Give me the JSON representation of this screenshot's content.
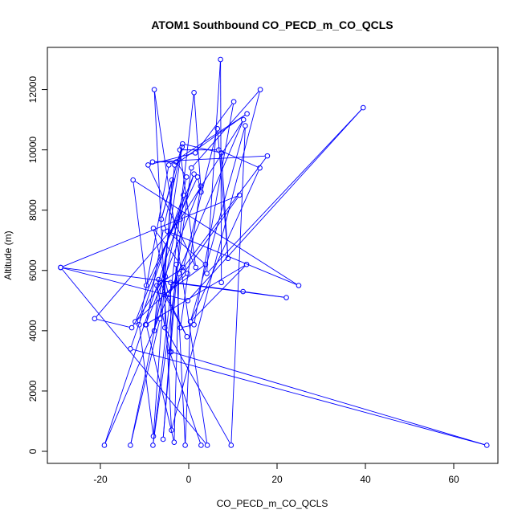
{
  "chart_data": {
    "type": "line",
    "title": "ATOM1 Southbound CO_PECD_m_CO_QCLS",
    "xlabel": "CO_PECD_m_CO_QCLS",
    "ylabel": "Altitude (m)",
    "xlim": [
      -32,
      70
    ],
    "ylim": [
      -400,
      13400
    ],
    "x_ticks": [
      -20,
      0,
      20,
      40,
      60
    ],
    "y_ticks": [
      0,
      2000,
      4000,
      6000,
      8000,
      10000,
      12000
    ],
    "x_tick_labels": [
      "-20",
      "0",
      "20",
      "40",
      "60"
    ],
    "y_tick_labels": [
      "0",
      "2000",
      "4000",
      "6000",
      "8000",
      "10000",
      "12000"
    ],
    "grid": false,
    "series_color": "#0000ff",
    "series": [
      {
        "points": [
          [
            2.8,
            200
          ],
          [
            -4.3,
            3300
          ],
          [
            -7.2,
            5500
          ],
          [
            -1.2,
            6100
          ],
          [
            6.5,
            10700
          ],
          [
            8.9,
            6400
          ],
          [
            7.4,
            9900
          ],
          [
            -1.4,
            10200
          ],
          [
            -6.2,
            7700
          ],
          [
            -3.8,
            9000
          ],
          [
            -8.0,
            500
          ],
          [
            -11.2,
            4200
          ],
          [
            -4.5,
            9500
          ],
          [
            13.2,
            11200
          ],
          [
            -3.2,
            9500
          ],
          [
            -6.5,
            4400
          ],
          [
            -13.2,
            200
          ],
          [
            -0.5,
            9100
          ],
          [
            -2.8,
            9600
          ],
          [
            -8.2,
            9600
          ],
          [
            17.8,
            9800
          ],
          [
            -2.2,
            5900
          ],
          [
            -3.3,
            300
          ],
          [
            -9.6,
            4200
          ],
          [
            -5.7,
            7400
          ],
          [
            -1.5,
            10100
          ],
          [
            -7.8,
            4000
          ],
          [
            -6.8,
            5700
          ],
          [
            -0.4,
            3800
          ],
          [
            -5.5,
            5200
          ],
          [
            3.8,
            6200
          ],
          [
            -4.8,
            7300
          ],
          [
            24.9,
            5500
          ],
          [
            -12.6,
            9000
          ],
          [
            -9.6,
            5500
          ],
          [
            2.0,
            9100
          ],
          [
            2.8,
            8600
          ],
          [
            1.2,
            11900
          ],
          [
            -8.1,
            200
          ],
          [
            0.6,
            9400
          ],
          [
            16.2,
            12000
          ],
          [
            -3.9,
            700
          ],
          [
            -7.8,
            12000
          ],
          [
            4.2,
            200
          ],
          [
            -29.0,
            6100
          ],
          [
            11.5,
            8500
          ],
          [
            -4.6,
            5200
          ],
          [
            -8.0,
            7400
          ],
          [
            -0.3,
            5900
          ],
          [
            -12.1,
            4300
          ],
          [
            1.2,
            9200
          ],
          [
            -19.1,
            200
          ],
          [
            12.4,
            11000
          ],
          [
            -1.9,
            7700
          ],
          [
            -21.3,
            4400
          ],
          [
            -12.9,
            4100
          ],
          [
            -5.3,
            5800
          ],
          [
            -5.4,
            4100
          ],
          [
            9.6,
            200
          ],
          [
            12.8,
            10800
          ],
          [
            0.4,
            4300
          ],
          [
            13.1,
            6200
          ],
          [
            -9.8,
            4200
          ],
          [
            2.7,
            8800
          ],
          [
            -1.9,
            4100
          ],
          [
            1.2,
            4200
          ],
          [
            10.2,
            11600
          ],
          [
            1.5,
            9900
          ],
          [
            -9.2,
            9500
          ],
          [
            1.6,
            6100
          ],
          [
            -2.0,
            10000
          ],
          [
            6.8,
            10000
          ],
          [
            16.1,
            9400
          ],
          [
            0.4,
            4300
          ],
          [
            -0.8,
            200
          ],
          [
            -2.8,
            6200
          ],
          [
            -5.8,
            400
          ],
          [
            -1.2,
            8500
          ],
          [
            -13.2,
            3400
          ],
          [
            67.5,
            200
          ],
          [
            -4.0,
            3300
          ],
          [
            -4.1,
            5600
          ],
          [
            22.1,
            5100
          ],
          [
            12.3,
            5300
          ],
          [
            -29.0,
            6100
          ],
          [
            -0.2,
            5000
          ],
          [
            39.5,
            11400
          ],
          [
            4.1,
            5900
          ],
          [
            7.2,
            13000
          ],
          [
            7.4,
            5600
          ]
        ]
      }
    ]
  }
}
